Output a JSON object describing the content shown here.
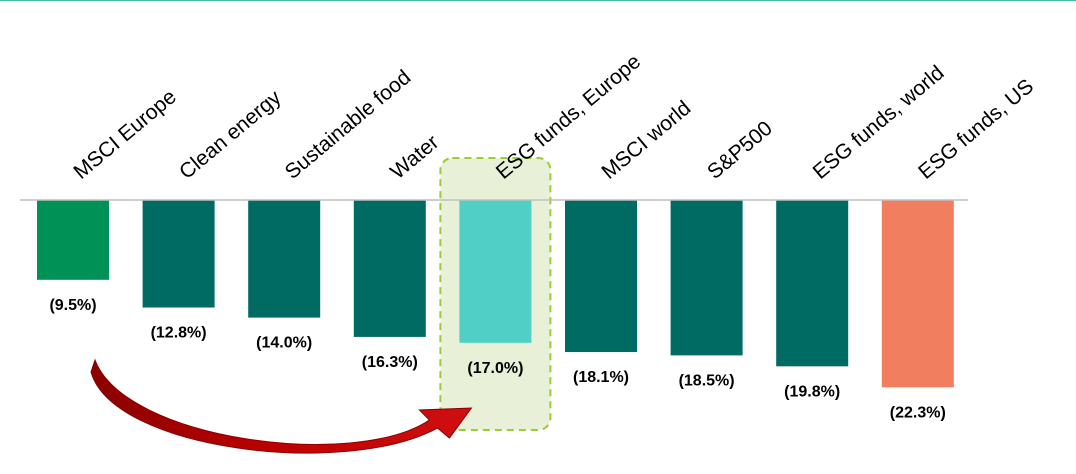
{
  "chart_data": {
    "type": "bar",
    "title": "",
    "xlabel": "",
    "ylabel": "",
    "categories": [
      "MSCI Europe",
      "Clean energy",
      "Sustainable food",
      "Water",
      "ESG funds, Europe",
      "MSCI world",
      "S&P500",
      "ESG funds, world",
      "ESG funds, US"
    ],
    "values": [
      -9.5,
      -12.8,
      -14.0,
      -16.3,
      -17.0,
      -18.1,
      -18.5,
      -19.8,
      -22.3
    ],
    "value_labels": [
      "(9.5%)",
      "(12.8%)",
      "(14.0%)",
      "(16.3%)",
      "(17.0%)",
      "(18.1%)",
      "(18.5%)",
      "(19.8%)",
      "(22.3%)"
    ],
    "ylim": [
      -23,
      0
    ],
    "grid": false,
    "legend": "none",
    "highlight_index": 4,
    "arrow": {
      "from_index": 0,
      "to_index": 4
    },
    "colors": [
      "#009157",
      "#006b63",
      "#006b63",
      "#006b63",
      "#50cfc7",
      "#006b63",
      "#006b63",
      "#006b63",
      "#f07e5f"
    ],
    "highlight_fill": "#e8f0d8",
    "highlight_stroke": "#9acd32",
    "arrow_color": "#c00000",
    "baseline_color": "#bfbfbf",
    "top_rule_color": "#3fbf9d"
  }
}
